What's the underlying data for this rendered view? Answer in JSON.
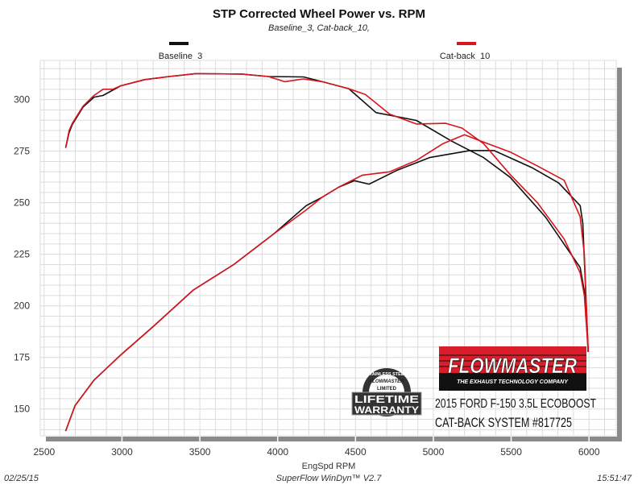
{
  "chart_data": {
    "type": "line",
    "title": "STP Corrected Wheel Power vs. RPM",
    "subtitle": "Baseline_3, Cat-back_10,",
    "xlabel": "EngSpd  RPM",
    "ylabel": "",
    "xlim": [
      2475,
      6175
    ],
    "ylim": [
      137,
      319
    ],
    "x_ticks": [
      2500,
      3000,
      3500,
      4000,
      4500,
      5000,
      5500,
      6000
    ],
    "y_ticks": [
      150,
      175,
      200,
      225,
      250,
      275,
      300
    ],
    "grid": true,
    "legend_placement": "top",
    "series": [
      {
        "name": "Baseline_3",
        "color": "#111111",
        "curves": [
          [
            [
              2638,
              276.6
            ],
            [
              2660,
              284
            ],
            [
              2681,
              288
            ],
            [
              2750,
              296.4
            ],
            [
              2820,
              301.2
            ],
            [
              2878,
              302
            ],
            [
              2992,
              306.7
            ],
            [
              3147,
              309.7
            ],
            [
              3303,
              311.2
            ],
            [
              3474,
              312.6
            ],
            [
              3769,
              312.4
            ],
            [
              3940,
              311.2
            ],
            [
              4166,
              311
            ],
            [
              4286,
              308.7
            ],
            [
              4457,
              305.3
            ],
            [
              4632,
              293.7
            ],
            [
              4769,
              291.7
            ],
            [
              4891,
              289.9
            ],
            [
              5115,
              280
            ],
            [
              5322,
              271.9
            ],
            [
              5494,
              262.3
            ],
            [
              5719,
              243.2
            ],
            [
              5943,
              218.6
            ],
            [
              5975,
              205
            ],
            [
              5995,
              177.6
            ]
          ],
          [
            [
              2638,
              139.3
            ],
            [
              2698,
              151.6
            ],
            [
              2820,
              164
            ],
            [
              2992,
              176.2
            ],
            [
              3199,
              189.9
            ],
            [
              3458,
              207.7
            ],
            [
              3717,
              220
            ],
            [
              3976,
              235
            ],
            [
              4183,
              248.6
            ],
            [
              4286,
              252.7
            ],
            [
              4390,
              257.5
            ],
            [
              4493,
              260.7
            ],
            [
              4587,
              259
            ],
            [
              4769,
              265.8
            ],
            [
              4976,
              271.9
            ],
            [
              5234,
              275.3
            ],
            [
              5390,
              275.3
            ],
            [
              5633,
              267
            ],
            [
              5805,
              259.6
            ],
            [
              5943,
              248.6
            ],
            [
              5960,
              240
            ],
            [
              5995,
              177.6
            ]
          ]
        ]
      },
      {
        "name": "Cat-back_10",
        "color": "#d8141c",
        "curves": [
          [
            [
              2638,
              276.6
            ],
            [
              2660,
              285
            ],
            [
              2681,
              288.5
            ],
            [
              2750,
              296.8
            ],
            [
              2820,
              302
            ],
            [
              2878,
              305
            ],
            [
              2940,
              305
            ],
            [
              2992,
              306.7
            ],
            [
              3147,
              309.7
            ],
            [
              3303,
              311.2
            ],
            [
              3474,
              312.6
            ],
            [
              3769,
              312.4
            ],
            [
              3940,
              311.2
            ],
            [
              4045,
              308.7
            ],
            [
              4166,
              310
            ],
            [
              4286,
              308.7
            ],
            [
              4457,
              305.3
            ],
            [
              4563,
              302.5
            ],
            [
              4719,
              293
            ],
            [
              4891,
              288.2
            ],
            [
              5080,
              288.5
            ],
            [
              5184,
              286.2
            ],
            [
              5322,
              278.7
            ],
            [
              5494,
              263.6
            ],
            [
              5669,
              250
            ],
            [
              5840,
              232.4
            ],
            [
              5943,
              216
            ],
            [
              5970,
              205
            ],
            [
              5995,
              177.6
            ]
          ],
          [
            [
              2638,
              139.3
            ],
            [
              2698,
              151.6
            ],
            [
              2820,
              164
            ],
            [
              2992,
              176.2
            ],
            [
              3199,
              189.9
            ],
            [
              3458,
              207.7
            ],
            [
              3717,
              220
            ],
            [
              3976,
              235
            ],
            [
              4183,
              246.5
            ],
            [
              4286,
              252.7
            ],
            [
              4390,
              257.5
            ],
            [
              4545,
              263.4
            ],
            [
              4719,
              265
            ],
            [
              4891,
              270.5
            ],
            [
              5063,
              278.7
            ],
            [
              5200,
              283
            ],
            [
              5322,
              279.4
            ],
            [
              5494,
              274.6
            ],
            [
              5669,
              267.8
            ],
            [
              5840,
              260.9
            ],
            [
              5943,
              243.2
            ],
            [
              5970,
              225
            ],
            [
              5995,
              177.6
            ]
          ]
        ]
      }
    ]
  },
  "footer": {
    "date": "02/25/15",
    "software": "SuperFlow WinDyn™ V2.7",
    "time": "15:51:47"
  },
  "branding": {
    "logo_text": "FLOWMASTER",
    "logo_tagline": "THE EXHAUST TECHNOLOGY COMPANY",
    "badge_text": [
      "STAINLESS STEEL",
      "FLOWMASTER",
      "LIMITED",
      "LIFETIME",
      "WARRANTY"
    ],
    "vehicle_line": "2015 FORD F-150 3.5L ECOBOOST",
    "product_line": "CAT-BACK SYSTEM #817725"
  }
}
